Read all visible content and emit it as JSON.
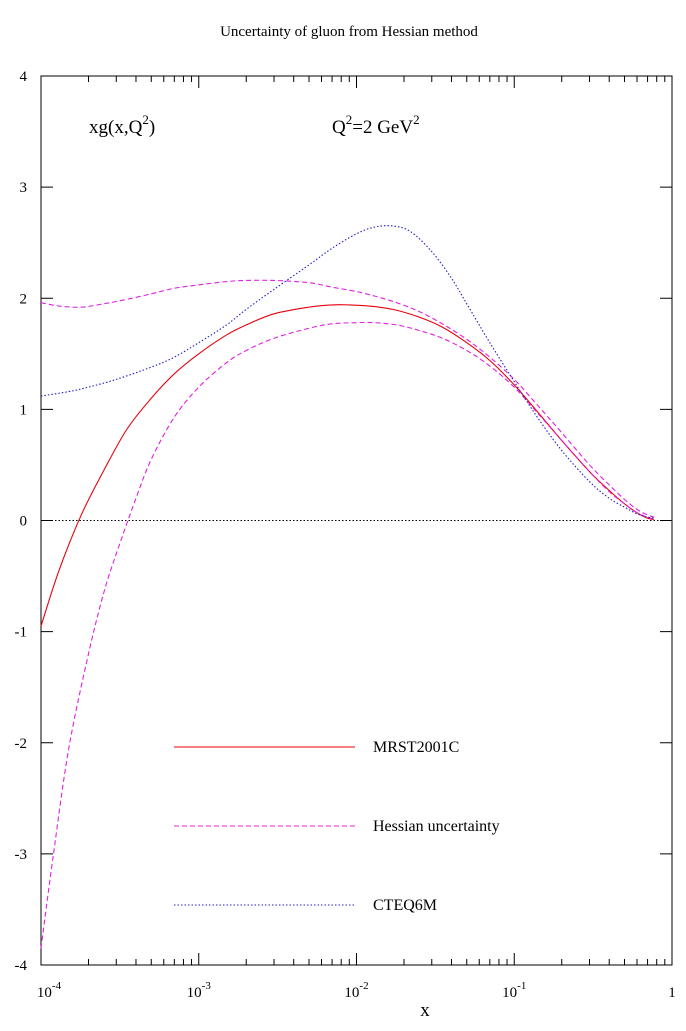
{
  "chart_data": {
    "type": "line",
    "title": "Uncertainty of gluon from Hessian method",
    "xlabel": "x",
    "ylabel": "",
    "xscale": "log",
    "xlim": [
      0.0001,
      1
    ],
    "ylim": [
      -4,
      4
    ],
    "annotations": [
      {
        "base": "xg(x,Q",
        "sup": "2",
        "tail": ")"
      },
      {
        "base": "Q",
        "sup": "2",
        "tail": "=2 GeV",
        "sup2": "2"
      }
    ],
    "x_ticks": [
      {
        "base": "10",
        "exp": "-4"
      },
      {
        "base": "10",
        "exp": "-3"
      },
      {
        "base": "10",
        "exp": "-2"
      },
      {
        "base": "10",
        "exp": "-1"
      },
      {
        "base": "1",
        "exp": ""
      }
    ],
    "y_ticks": [
      "4",
      "3",
      "2",
      "1",
      "0",
      "-1",
      "-2",
      "-3",
      "-4"
    ],
    "legend_position": "bottom-center",
    "reference_line": {
      "y": 0,
      "color": "#000000",
      "dash": "dotted"
    },
    "series": [
      {
        "name": "MRST2001C",
        "color": "#e8000b",
        "dash": "solid",
        "x": [
          0.0001,
          0.00013,
          0.00018,
          0.00025,
          0.00035,
          0.0005,
          0.0007,
          0.001,
          0.0015,
          0.002,
          0.003,
          0.005,
          0.007,
          0.009,
          0.012,
          0.017,
          0.025,
          0.035,
          0.05,
          0.07,
          0.1,
          0.14,
          0.2,
          0.3,
          0.4,
          0.5,
          0.6,
          0.7,
          0.77
        ],
        "values": [
          -0.95,
          -0.45,
          0.05,
          0.45,
          0.82,
          1.1,
          1.32,
          1.5,
          1.67,
          1.76,
          1.86,
          1.92,
          1.94,
          1.94,
          1.93,
          1.9,
          1.83,
          1.74,
          1.6,
          1.44,
          1.22,
          0.98,
          0.72,
          0.44,
          0.27,
          0.15,
          0.07,
          0.02,
          0.01
        ]
      },
      {
        "name": "Hessian uncertainty",
        "color": "#e020e0",
        "dash": "dashed",
        "x": [
          0.0001,
          0.00013,
          0.00018,
          0.00025,
          0.00035,
          0.0005,
          0.0007,
          0.001,
          0.0015,
          0.002,
          0.003,
          0.005,
          0.007,
          0.01,
          0.013,
          0.018,
          0.025,
          0.035,
          0.05,
          0.07,
          0.1,
          0.14,
          0.2,
          0.3,
          0.4,
          0.5,
          0.6,
          0.7,
          0.77
        ],
        "values": [
          1.96,
          1.93,
          1.92,
          1.95,
          1.99,
          2.04,
          2.09,
          2.12,
          2.15,
          2.16,
          2.16,
          2.14,
          2.1,
          2.06,
          2.02,
          1.96,
          1.88,
          1.77,
          1.63,
          1.47,
          1.27,
          1.04,
          0.79,
          0.5,
          0.32,
          0.19,
          0.1,
          0.05,
          0.03
        ]
      },
      {
        "name": "",
        "color": "#e020e0",
        "dash": "dashed",
        "x": [
          0.0001,
          0.00012,
          0.00015,
          0.0002,
          0.00025,
          0.0003,
          0.0004,
          0.0005,
          0.0007,
          0.001,
          0.0015,
          0.002,
          0.003,
          0.005,
          0.007,
          0.01,
          0.013,
          0.018,
          0.025,
          0.035,
          0.05,
          0.07,
          0.1,
          0.14,
          0.2,
          0.3,
          0.4,
          0.5,
          0.6,
          0.7,
          0.77
        ],
        "values": [
          -3.85,
          -3.0,
          -2.05,
          -1.2,
          -0.65,
          -0.3,
          0.2,
          0.55,
          0.93,
          1.2,
          1.42,
          1.53,
          1.64,
          1.73,
          1.77,
          1.78,
          1.78,
          1.76,
          1.71,
          1.64,
          1.53,
          1.39,
          1.2,
          0.97,
          0.72,
          0.44,
          0.26,
          0.15,
          0.07,
          0.03,
          0.01
        ]
      },
      {
        "name": "CTEQ6M",
        "color": "#2020c8",
        "dash": "dotted",
        "x": [
          0.0001,
          0.00015,
          0.0002,
          0.0003,
          0.0005,
          0.0007,
          0.001,
          0.0015,
          0.002,
          0.003,
          0.005,
          0.007,
          0.01,
          0.013,
          0.017,
          0.022,
          0.03,
          0.04,
          0.05,
          0.07,
          0.1,
          0.14,
          0.2,
          0.3,
          0.4,
          0.5,
          0.6,
          0.7,
          0.77
        ],
        "values": [
          1.12,
          1.16,
          1.2,
          1.27,
          1.38,
          1.47,
          1.6,
          1.76,
          1.9,
          2.08,
          2.3,
          2.45,
          2.58,
          2.64,
          2.65,
          2.6,
          2.42,
          2.18,
          1.95,
          1.6,
          1.25,
          0.93,
          0.63,
          0.35,
          0.2,
          0.12,
          0.06,
          0.03,
          0.02
        ]
      }
    ]
  }
}
